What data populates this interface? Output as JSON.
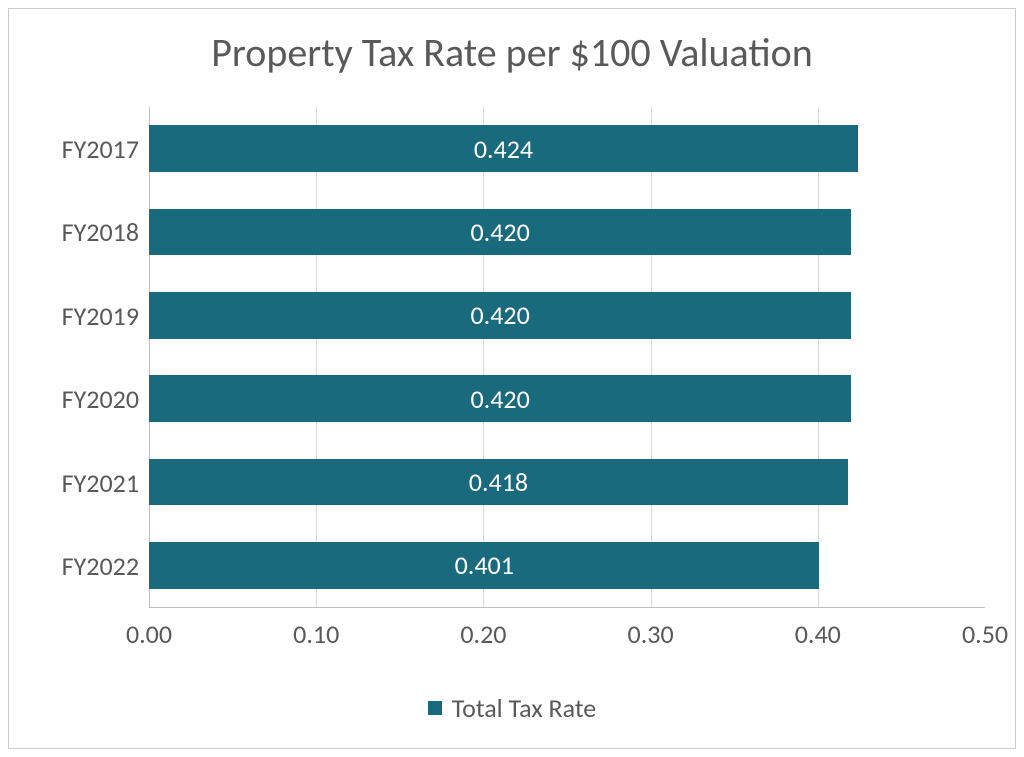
{
  "chart": {
    "type": "bar-horizontal",
    "title": "Property Tax Rate per $100 Valuation",
    "title_fontsize": 40,
    "title_color": "#595959",
    "background_color": "#ffffff",
    "border_color": "#cccccc",
    "categories": [
      "FY2017",
      "FY2018",
      "FY2019",
      "FY2020",
      "FY2021",
      "FY2022"
    ],
    "values": [
      0.424,
      0.42,
      0.42,
      0.42,
      0.418,
      0.401
    ],
    "value_labels": [
      "0.424",
      "0.420",
      "0.420",
      "0.420",
      "0.418",
      "0.401"
    ],
    "bar_color": "#1a6a7e",
    "bar_label_color": "#ffffff",
    "bar_label_fontsize": 26,
    "axis_label_color": "#595959",
    "axis_label_fontsize": 26,
    "grid_color": "#d9d9d9",
    "axis_line_color": "#bfbfbf",
    "xlim": [
      0,
      0.5
    ],
    "xtick_step": 0.1,
    "xtick_labels": [
      "0.00",
      "0.10",
      "0.20",
      "0.30",
      "0.40",
      "0.50"
    ],
    "legend": {
      "label": "Total Tax Rate",
      "marker_color": "#1a6a7e",
      "text_color": "#595959",
      "fontsize": 26
    }
  }
}
